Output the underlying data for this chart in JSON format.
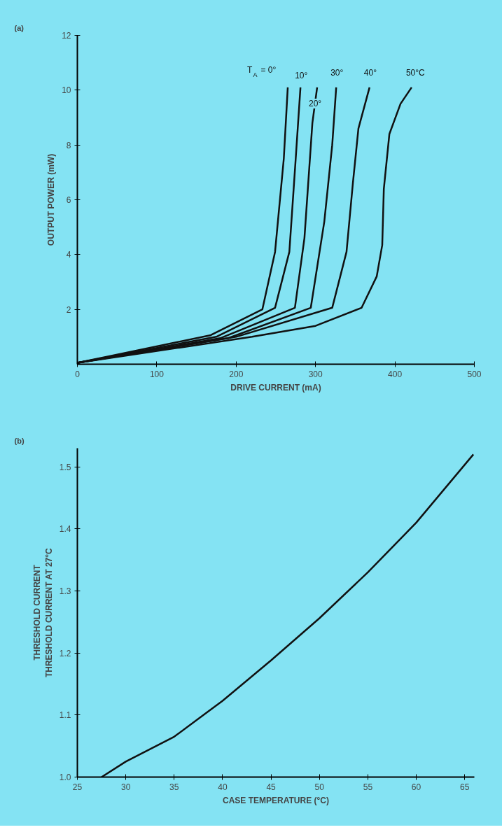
{
  "chart_data": [
    {
      "type": "line",
      "title": "(a)",
      "xlabel": "DRIVE CURRENT (mA)",
      "ylabel": "OUTPUT POWER (mW)",
      "xlim": [
        0,
        500
      ],
      "ylim": [
        0,
        12
      ],
      "xticks": [
        0,
        100,
        200,
        300,
        400,
        500
      ],
      "yticks": [
        2,
        4,
        6,
        8,
        10,
        12
      ],
      "grid": false,
      "series": [
        {
          "name": "T$_{A}$ = 0°",
          "color": "#111111",
          "x": [
            0,
            168,
            210,
            233,
            249,
            260,
            265
          ],
          "values": [
            0.05,
            1.06,
            1.67,
            2.0,
            4.1,
            7.5,
            10.1
          ]
        },
        {
          "name": "10°",
          "color": "#111111",
          "x": [
            0,
            175,
            249,
            267,
            275,
            281
          ],
          "values": [
            0.05,
            1.0,
            2.06,
            4.1,
            7.5,
            10.1
          ]
        },
        {
          "name": "20°",
          "color": "#111111",
          "x": [
            0,
            180,
            274,
            286,
            296,
            302
          ],
          "values": [
            0.05,
            0.95,
            2.06,
            4.6,
            8.8,
            10.1
          ]
        },
        {
          "name": "30°",
          "color": "#111111",
          "x": [
            0,
            190,
            294,
            311,
            321,
            326
          ],
          "values": [
            0.05,
            0.95,
            2.06,
            5.2,
            8.0,
            10.1
          ]
        },
        {
          "name": "40°",
          "color": "#111111",
          "x": [
            0,
            200,
            321,
            339,
            347,
            354,
            368
          ],
          "values": [
            0.05,
            1.0,
            2.06,
            4.1,
            6.6,
            8.6,
            10.1
          ]
        },
        {
          "name": "50°C",
          "color": "#111111",
          "x": [
            0,
            220,
            300,
            358,
            377,
            384,
            386,
            393,
            407,
            421
          ],
          "values": [
            0.05,
            1.0,
            1.4,
            2.06,
            3.2,
            4.35,
            6.4,
            8.4,
            9.5,
            10.1
          ]
        }
      ]
    },
    {
      "type": "line",
      "title": "(b)",
      "xlabel": "CASE TEMPERATURE (°C)",
      "ylabel": "THRESHOLD CURRENT\nTHRESHOLD CURRENT AT 27°C",
      "xlim": [
        25,
        66
      ],
      "ylim": [
        1.0,
        1.53
      ],
      "xticks": [
        25,
        30,
        35,
        40,
        45,
        50,
        55,
        60,
        65
      ],
      "yticks": [
        {
          "value": 1.0,
          "label": "1.0"
        },
        1.1,
        1.2,
        1.3,
        1.4,
        1.5
      ],
      "grid": false,
      "series": [
        {
          "color": "#111111",
          "x": [
            27.5,
            30,
            35,
            40,
            45,
            50,
            55,
            60,
            65.9
          ],
          "values": [
            1.0,
            1.025,
            1.065,
            1.123,
            1.188,
            1.256,
            1.33,
            1.41,
            1.52
          ]
        }
      ]
    }
  ]
}
